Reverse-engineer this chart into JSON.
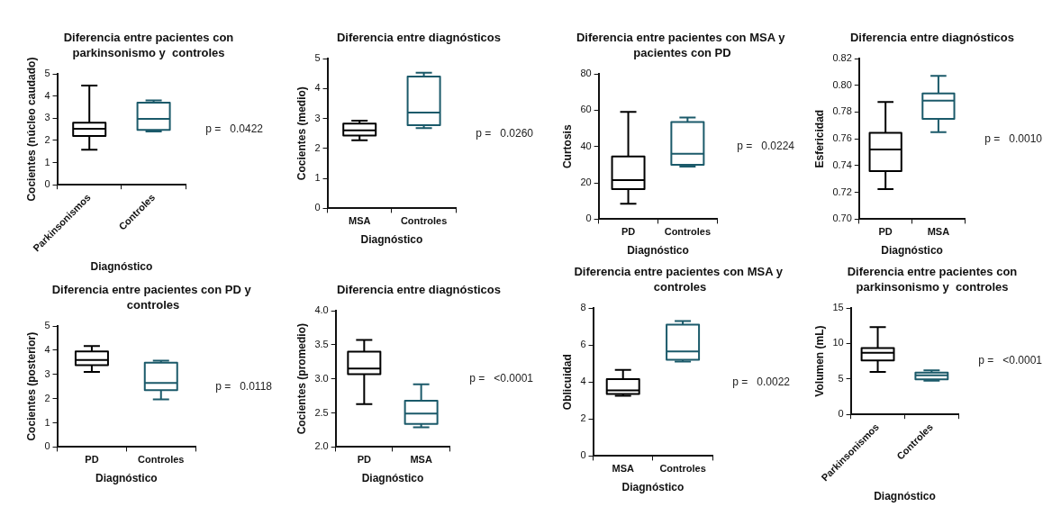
{
  "chart_data": [
    {
      "type": "box",
      "title": "Diferencia entre pacientes con parkinsonismo y  controles",
      "xlabel": "Diagnóstico",
      "ylabel": "Cocientes (núcleo caudado)",
      "categories": [
        "Parkinsonismos",
        "Controles"
      ],
      "colors": [
        "#000000",
        "#1b5a6a"
      ],
      "boxes": [
        {
          "low": 1.58,
          "q1": 2.2,
          "median": 2.52,
          "q3": 2.8,
          "high": 4.47
        },
        {
          "low": 2.4,
          "q1": 2.47,
          "median": 2.97,
          "q3": 3.7,
          "high": 3.8
        }
      ],
      "ylim": [
        0,
        5
      ],
      "yticks": [
        0,
        1,
        2,
        3,
        4,
        5
      ],
      "grid": false,
      "legend": false,
      "annotations": [
        "p =   0.0422"
      ]
    },
    {
      "type": "box",
      "title": "Diferencia entre diagnósticos",
      "xlabel": "Diagnóstico",
      "ylabel": "Cocientes (medio)",
      "categories": [
        "MSA",
        "Controles"
      ],
      "colors": [
        "#000000",
        "#1b5a6a"
      ],
      "boxes": [
        {
          "low": 2.27,
          "q1": 2.43,
          "median": 2.6,
          "q3": 2.83,
          "high": 2.93
        },
        {
          "low": 2.68,
          "q1": 2.78,
          "median": 3.2,
          "q3": 4.4,
          "high": 4.53
        }
      ],
      "ylim": [
        0,
        5
      ],
      "yticks": [
        0,
        1,
        2,
        3,
        4,
        5
      ],
      "grid": false,
      "legend": false,
      "annotations": [
        "p =   0.0260"
      ]
    },
    {
      "type": "box",
      "title": "Diferencia entre pacientes con MSA y  pacientes con PD",
      "xlabel": "Diagnóstico",
      "ylabel": "Curtosis",
      "categories": [
        "PD",
        "Controles"
      ],
      "colors": [
        "#000000",
        "#1b5a6a"
      ],
      "boxes": [
        {
          "low": 8.5,
          "q1": 16.5,
          "median": 21.5,
          "q3": 34.5,
          "high": 59
        },
        {
          "low": 29,
          "q1": 30,
          "median": 36,
          "q3": 53.5,
          "high": 56
        }
      ],
      "ylim": [
        0,
        80
      ],
      "yticks": [
        0,
        20,
        40,
        60,
        80
      ],
      "grid": false,
      "legend": false,
      "annotations": [
        "p =   0.0224"
      ]
    },
    {
      "type": "box",
      "title": "Diferencia entre diagnósticos",
      "xlabel": "Diagnóstico",
      "ylabel": "Esfericidad",
      "categories": [
        "PD",
        "MSA"
      ],
      "colors": [
        "#000000",
        "#1b5a6a"
      ],
      "boxes": [
        {
          "low": 0.7225,
          "q1": 0.736,
          "median": 0.752,
          "q3": 0.7645,
          "high": 0.7875
        },
        {
          "low": 0.765,
          "q1": 0.775,
          "median": 0.7885,
          "q3": 0.794,
          "high": 0.807
        }
      ],
      "ylim": [
        0.7,
        0.82
      ],
      "yticks": [
        {
          "value": 0.7,
          "label": "0.70"
        },
        {
          "value": 0.72,
          "label": "0.72"
        },
        {
          "value": 0.74,
          "label": "0.74"
        },
        {
          "value": 0.76,
          "label": "0.76"
        },
        {
          "value": 0.78,
          "label": "0.78"
        },
        {
          "value": 0.8,
          "label": "0.80"
        },
        {
          "value": 0.82,
          "label": "0.82"
        }
      ],
      "grid": false,
      "legend": false,
      "annotations": [
        "p =   0.0010"
      ]
    },
    {
      "type": "box",
      "title": "Diferencia entre pacientes con PD y  controles",
      "xlabel": "Diagnóstico",
      "ylabel": "Cocientes (posterior)",
      "categories": [
        "PD",
        "Controles"
      ],
      "colors": [
        "#000000",
        "#1b5a6a"
      ],
      "boxes": [
        {
          "low": 3.1,
          "q1": 3.38,
          "median": 3.6,
          "q3": 3.95,
          "high": 4.17
        },
        {
          "low": 1.97,
          "q1": 2.35,
          "median": 2.65,
          "q3": 3.48,
          "high": 3.57
        }
      ],
      "ylim": [
        0,
        5
      ],
      "yticks": [
        0,
        1,
        2,
        3,
        4,
        5
      ],
      "grid": false,
      "legend": false,
      "annotations": [
        "p =   0.0118"
      ]
    },
    {
      "type": "box",
      "title": "Diferencia entre diagnósticos",
      "xlabel": "Diagnóstico",
      "ylabel": "Cocientes (promedio)",
      "categories": [
        "PD",
        "MSA"
      ],
      "colors": [
        "#000000",
        "#1b5a6a"
      ],
      "boxes": [
        {
          "low": 2.63,
          "q1": 3.07,
          "median": 3.15,
          "q3": 3.4,
          "high": 3.57
        },
        {
          "low": 2.29,
          "q1": 2.34,
          "median": 2.49,
          "q3": 2.68,
          "high": 2.92
        }
      ],
      "ylim": [
        2,
        4
      ],
      "yticks": [
        {
          "value": 2,
          "label": "2.0"
        },
        {
          "value": 2.5,
          "label": "2.5"
        },
        {
          "value": 3,
          "label": "3.0"
        },
        {
          "value": 3.5,
          "label": "3.5"
        },
        {
          "value": 4,
          "label": "4.0"
        }
      ],
      "grid": false,
      "legend": false,
      "annotations": [
        "p =   <0.0001"
      ]
    },
    {
      "type": "box",
      "title": "Diferencia entre pacientes con MSA y  controles",
      "xlabel": "Diagnóstico",
      "ylabel": "Oblicuidad",
      "categories": [
        "MSA",
        "Controles"
      ],
      "colors": [
        "#000000",
        "#1b5a6a"
      ],
      "boxes": [
        {
          "low": 3.25,
          "q1": 3.35,
          "median": 3.55,
          "q3": 4.15,
          "high": 4.65
        },
        {
          "low": 5.1,
          "q1": 5.2,
          "median": 5.65,
          "q3": 7.1,
          "high": 7.3
        }
      ],
      "ylim": [
        0,
        8
      ],
      "yticks": [
        0,
        2,
        4,
        6,
        8
      ],
      "grid": false,
      "legend": false,
      "annotations": [
        "p =   0.0022"
      ]
    },
    {
      "type": "box",
      "title": "Diferencia entre pacientes con parkinsonismo y  controles",
      "xlabel": "Diagnóstico",
      "ylabel": "Volumen (mL)",
      "categories": [
        "Parkinsonismos",
        "Controles"
      ],
      "colors": [
        "#000000",
        "#1b5a6a"
      ],
      "boxes": [
        {
          "low": 6.0,
          "q1": 7.6,
          "median": 8.7,
          "q3": 9.35,
          "high": 12.3
        },
        {
          "low": 4.75,
          "q1": 4.95,
          "median": 5.5,
          "q3": 5.9,
          "high": 6.2
        }
      ],
      "ylim": [
        0,
        15
      ],
      "yticks": [
        0,
        5,
        10,
        15
      ],
      "grid": false,
      "legend": false,
      "annotations": [
        "p =   <0.0001"
      ]
    }
  ]
}
